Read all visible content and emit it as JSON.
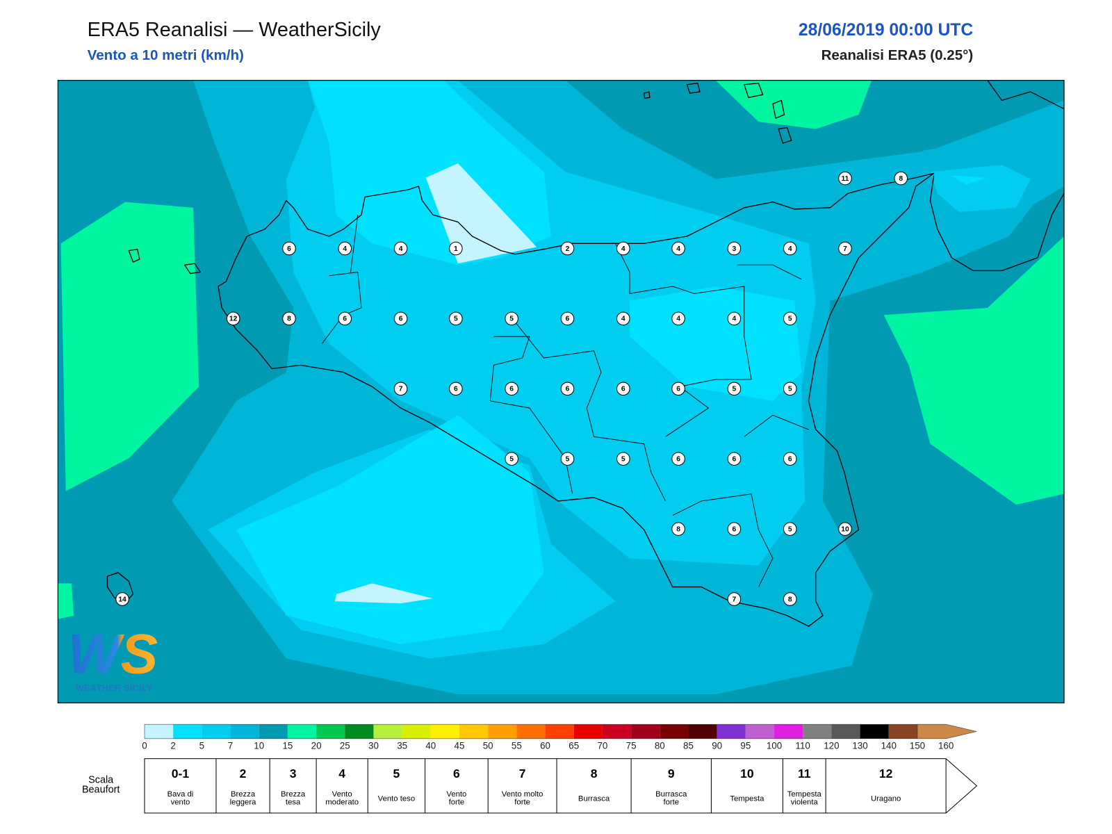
{
  "header": {
    "title": "ERA5 Reanalisi — WeatherSicily",
    "subtitle": "Vento a 10 metri (km/h)",
    "datetime": "28/06/2019 00:00 UTC",
    "source": "Reanalisi ERA5 (0.25°)"
  },
  "stations": [
    11,
    8,
    6,
    4,
    4,
    1,
    2,
    4,
    4,
    3,
    4,
    7,
    12,
    8,
    6,
    6,
    5,
    5,
    6,
    4,
    4,
    4,
    5,
    7,
    6,
    6,
    6,
    6,
    6,
    5,
    5,
    5,
    5,
    5,
    6,
    6,
    6,
    8,
    6,
    5,
    10,
    7,
    8,
    14
  ],
  "colorbar": {
    "ticks": [
      0,
      2,
      5,
      7,
      10,
      15,
      20,
      25,
      30,
      35,
      40,
      45,
      50,
      55,
      60,
      65,
      70,
      75,
      80,
      85,
      90,
      95,
      100,
      110,
      120,
      130,
      140,
      150,
      160
    ],
    "colors": [
      "#c4f4ff",
      "#00e1ff",
      "#00cdf0",
      "#00b6d8",
      "#009ab3",
      "#00f5a0",
      "#00c850",
      "#008a20",
      "#b4f03c",
      "#d8f000",
      "#fff000",
      "#ffc800",
      "#ffa000",
      "#ff7000",
      "#ff4000",
      "#e80000",
      "#cc0020",
      "#a00018",
      "#780000",
      "#500000",
      "#8030d0",
      "#c060d0",
      "#e020e0",
      "#808080",
      "#585858",
      "#000000",
      "#884422",
      "#cc8844"
    ]
  },
  "beaufort": {
    "label": [
      "Scala",
      "Beaufort"
    ],
    "levels": [
      {
        "force": "0-1",
        "description": [
          "Bava di",
          "vento"
        ]
      },
      {
        "force": "2",
        "description": [
          "Brezza",
          "leggera"
        ]
      },
      {
        "force": "3",
        "description": [
          "Brezza",
          "tesa"
        ]
      },
      {
        "force": "4",
        "description": [
          "Vento",
          "moderato"
        ]
      },
      {
        "force": "5",
        "description": [
          "Vento teso"
        ]
      },
      {
        "force": "6",
        "description": [
          "Vento",
          "forte"
        ]
      },
      {
        "force": "7",
        "description": [
          "Vento molto",
          "forte"
        ]
      },
      {
        "force": "8",
        "description": [
          "Burrasca"
        ]
      },
      {
        "force": "9",
        "description": [
          "Burrasca",
          "forte"
        ]
      },
      {
        "force": "10",
        "description": [
          "Tempesta"
        ]
      },
      {
        "force": "11",
        "description": [
          "Tempesta",
          "violenta"
        ]
      },
      {
        "force": "12",
        "description": [
          "Uragano"
        ]
      }
    ]
  },
  "logo": {
    "mark": "WS",
    "name": "WEATHER SICILY"
  }
}
